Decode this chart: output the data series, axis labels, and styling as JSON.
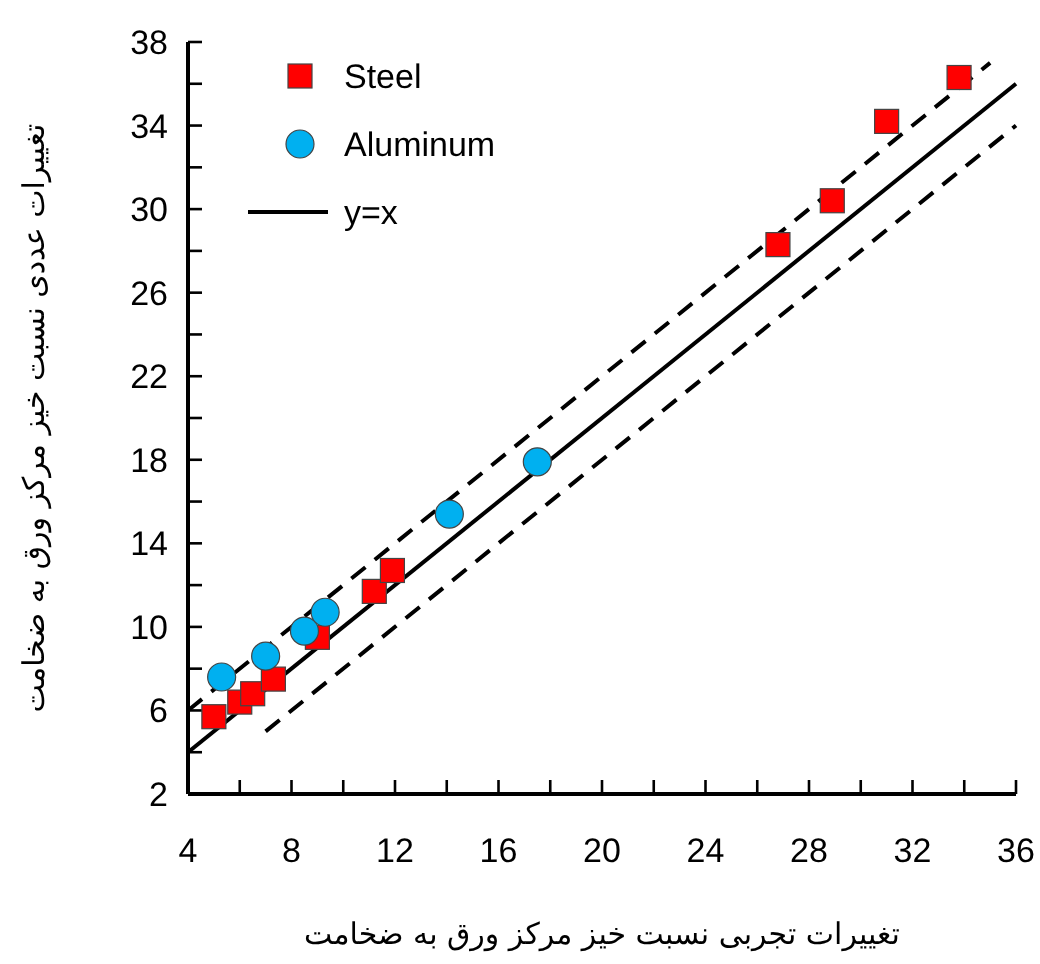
{
  "chart_data": {
    "type": "scatter",
    "xlabel": "تغییرات تجربی نسبت خیز مرکز ورق به ضخامت",
    "ylabel": "تغییرات عددی نسبت خیز مرکز ورق به ضخامت",
    "xlim": [
      4,
      36
    ],
    "ylim": [
      2,
      38
    ],
    "xticks": [
      4,
      8,
      12,
      16,
      20,
      24,
      28,
      32,
      36
    ],
    "yticks": [
      2,
      6,
      10,
      14,
      18,
      22,
      26,
      30,
      34,
      38
    ],
    "legend": "top left",
    "series": [
      {
        "name": "Steel",
        "color": "#ff0000",
        "marker": "square",
        "x": [
          5.0,
          6.0,
          6.5,
          7.3,
          9.0,
          11.2,
          11.9,
          26.8,
          28.9,
          31.0,
          33.8
        ],
        "values": [
          5.7,
          6.4,
          6.8,
          7.5,
          9.5,
          11.7,
          12.7,
          28.3,
          30.4,
          34.2,
          36.3
        ]
      },
      {
        "name": "Aluminum",
        "color": "#00b0f0",
        "marker": "circle",
        "x": [
          5.3,
          7.0,
          8.5,
          9.3,
          14.1,
          17.5
        ],
        "values": [
          7.6,
          8.6,
          9.8,
          10.7,
          15.4,
          17.9
        ]
      },
      {
        "name": "y=x",
        "type": "line",
        "color": "#000000",
        "marker": "none",
        "line_style": "solid",
        "x": [
          4,
          36
        ],
        "values": [
          4,
          36
        ]
      },
      {
        "type": "line",
        "color": "#000000",
        "marker": "none",
        "line_style": "dashed",
        "x": [
          4,
          35
        ],
        "values": [
          6,
          37
        ]
      },
      {
        "type": "line",
        "color": "#000000",
        "marker": "none",
        "line_style": "dashed",
        "x": [
          7,
          36
        ],
        "values": [
          5,
          34
        ]
      }
    ]
  }
}
